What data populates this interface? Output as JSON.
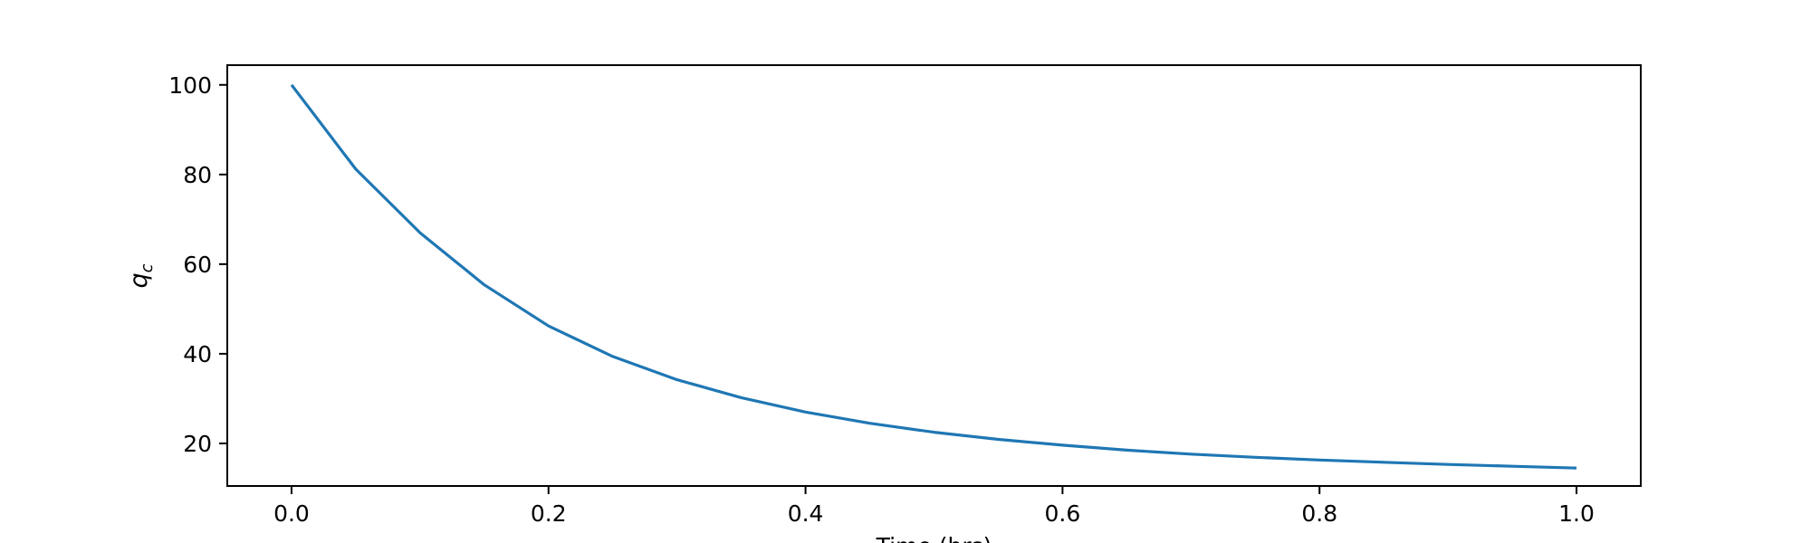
{
  "chart_data": {
    "type": "line",
    "title": "",
    "xlabel": "Time (hrs)",
    "ylabel": "q",
    "ylabel_subscript": "c",
    "xlim": [
      -0.05,
      1.05
    ],
    "ylim": [
      10.5,
      104.4
    ],
    "xticks": [
      0.0,
      0.2,
      0.4,
      0.6,
      0.8,
      1.0
    ],
    "xtick_labels": [
      "0.0",
      "0.2",
      "0.4",
      "0.6",
      "0.8",
      "1.0"
    ],
    "yticks": [
      20,
      40,
      60,
      80,
      100
    ],
    "ytick_labels": [
      "20",
      "40",
      "60",
      "80",
      "100"
    ],
    "grid": false,
    "legend": null,
    "line_color": "#1f77b4",
    "series": [
      {
        "x": [
          0.0,
          0.05,
          0.1,
          0.15,
          0.2,
          0.25,
          0.3,
          0.35,
          0.4,
          0.45,
          0.5,
          0.55,
          0.6,
          0.65,
          0.7,
          0.75,
          0.8,
          0.85,
          0.9,
          0.95,
          1.0
        ],
        "values": [
          100.0,
          81.2,
          67.0,
          55.4,
          46.2,
          39.4,
          34.2,
          30.2,
          27.0,
          24.5,
          22.5,
          20.9,
          19.6,
          18.5,
          17.6,
          16.9,
          16.3,
          15.8,
          15.3,
          14.9,
          14.5
        ]
      }
    ]
  }
}
